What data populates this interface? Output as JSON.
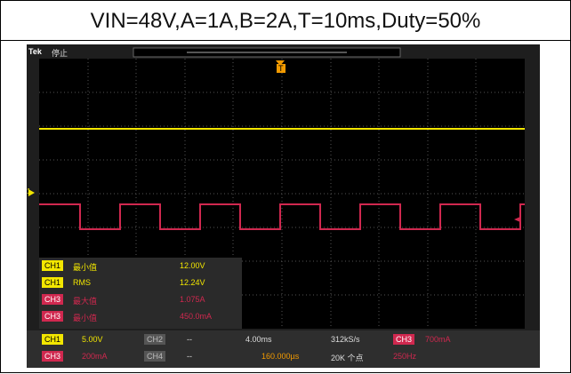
{
  "header": {
    "title": "VIN=48V,A=1A,B=2A,T=10ms,Duty=50%"
  },
  "scope": {
    "brand": "Tek",
    "status": "停止",
    "trigger_marker": "T",
    "ch1_marker": "1",
    "measurements": [
      {
        "channel": "CH1",
        "name": "最小值",
        "value": "12.00V"
      },
      {
        "channel": "CH1",
        "name": "RMS",
        "value": "12.24V"
      },
      {
        "channel": "CH3",
        "name": "最大值",
        "value": "1.075A"
      },
      {
        "channel": "CH3",
        "name": "最小值",
        "value": "450.0mA"
      }
    ],
    "bottom": {
      "ch1": "CH1",
      "ch1_scale": "5.00V",
      "ch2": "CH2",
      "ch2_scale": "--",
      "ch3": "CH3",
      "ch3_scale": "200mA",
      "ch4": "CH4",
      "ch4_scale": "--",
      "timebase": "4.00ms",
      "sample_rate": "312kS/s",
      "delay": "160.000µs",
      "points": "20K 个点",
      "trig_source": "CH3",
      "trig_level": "700mA",
      "freq": "250Hz"
    }
  }
}
